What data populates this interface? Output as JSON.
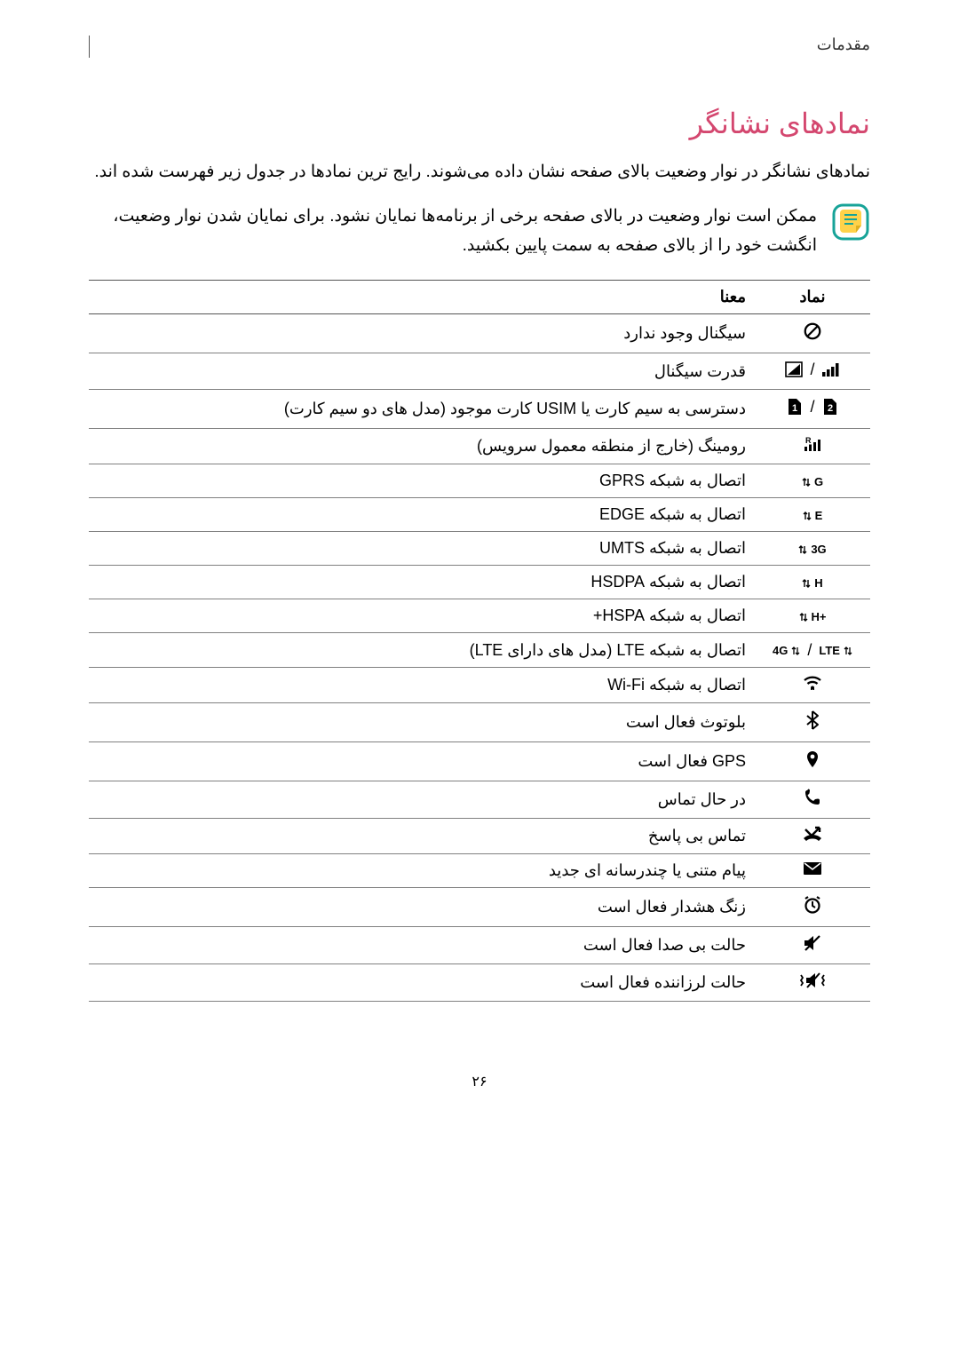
{
  "breadcrumb": "مقدمات",
  "title": "نمادهای نشانگر",
  "intro": "نمادهای نشانگر در نوار وضعیت بالای صفحه نشان داده می‌شوند. رایج ترین نمادها در جدول زیر فهرست شده اند.",
  "note": "ممکن است نوار وضعیت در بالای صفحه برخی از برنامه‌ها نمایان نشود. برای نمایان شدن نوار وضعیت، انگشت خود را از بالای صفحه به سمت پایین بکشید.",
  "table": {
    "head_icon": "نماد",
    "head_meaning": "معنا",
    "rows": [
      {
        "key": "no-signal",
        "meaning": "سیگنال وجود ندارد"
      },
      {
        "key": "signal",
        "meaning": "قدرت سیگنال"
      },
      {
        "key": "sim",
        "meaning": "دسترسی به سیم کارت یا USIM کارت موجود (مدل های دو سیم کارت)"
      },
      {
        "key": "roaming",
        "meaning": "رومینگ (خارج از منطقه معمول سرویس)"
      },
      {
        "key": "gprs",
        "meaning": "اتصال به شبکه GPRS"
      },
      {
        "key": "edge",
        "meaning": "اتصال به شبکه EDGE"
      },
      {
        "key": "umts",
        "meaning": "اتصال به شبکه UMTS"
      },
      {
        "key": "hsdpa",
        "meaning": "اتصال به شبکه HSDPA"
      },
      {
        "key": "hspa+",
        "meaning": "اتصال به شبکه HSPA+"
      },
      {
        "key": "lte",
        "meaning": "اتصال به شبکه LTE (مدل های دارای LTE)"
      },
      {
        "key": "wifi",
        "meaning": "اتصال به شبکه Wi-Fi"
      },
      {
        "key": "bluetooth",
        "meaning": "بلوتوث فعال است"
      },
      {
        "key": "gps",
        "meaning": "GPS فعال است"
      },
      {
        "key": "call",
        "meaning": "در حال تماس"
      },
      {
        "key": "missed",
        "meaning": "تماس بی پاسخ"
      },
      {
        "key": "message",
        "meaning": "پیام متنی یا چندرسانه ای جدید"
      },
      {
        "key": "alarm",
        "meaning": "زنگ هشدار فعال است"
      },
      {
        "key": "mute",
        "meaning": "حالت بی صدا فعال است"
      },
      {
        "key": "vibrate",
        "meaning": "حالت لرزاننده فعال است"
      }
    ]
  },
  "page_number": "۲۶",
  "colors": {
    "title": "#d4476f",
    "text": "#000000",
    "border": "#555555",
    "row_border": "#808080",
    "note_icon_border": "#17a398",
    "note_icon_fill": "#ffd24a"
  }
}
